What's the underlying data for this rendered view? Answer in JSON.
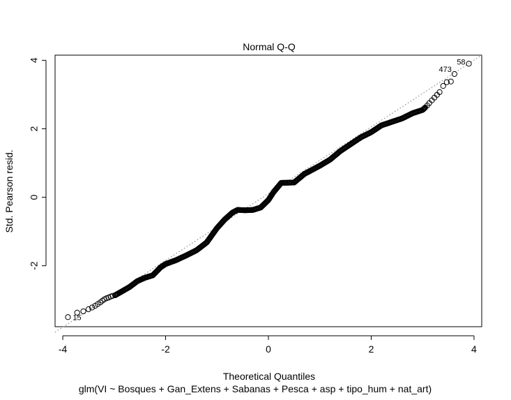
{
  "chart_data": {
    "type": "scatter",
    "title": "Normal Q-Q",
    "xlabel": "Theoretical Quantiles",
    "ylabel": "Std. Pearson resid.",
    "caption": "glm(VI ~ Bosques + Gan_Extens + Sabanas + Pesca + asp + tipo_hum + nat_art)",
    "xlim": [
      -4.15,
      4.15
    ],
    "ylim": [
      -3.78,
      4.15
    ],
    "x_ticks": [
      -4,
      -2,
      0,
      2,
      4
    ],
    "y_ticks": [
      -2,
      0,
      2,
      4
    ],
    "grid": false,
    "legend": "none",
    "marker": "open-circle",
    "reference_line": {
      "style": "dotted",
      "points": [
        [
          -4.15,
          -3.94
        ],
        [
          4.15,
          4.15
        ]
      ]
    },
    "annotations": [
      {
        "label": "15",
        "x": -3.9,
        "y": -3.5
      },
      {
        "label": "473",
        "x": 3.62,
        "y": 3.6
      },
      {
        "label": "58",
        "x": 3.9,
        "y": 3.9
      }
    ],
    "series": [
      {
        "points": [
          [
            -3.9,
            -3.5
          ],
          [
            -3.72,
            -3.37
          ],
          [
            -3.6,
            -3.33
          ],
          [
            -3.5,
            -3.27
          ],
          [
            -3.43,
            -3.22
          ],
          [
            -3.37,
            -3.17
          ],
          [
            -3.32,
            -3.12
          ],
          [
            -3.27,
            -3.07
          ],
          [
            -3.23,
            -3.02
          ],
          [
            -3.19,
            -2.98
          ],
          [
            -3.15,
            -2.95
          ],
          [
            -3.11,
            -2.93
          ],
          [
            -3.07,
            -2.9
          ],
          [
            -3.03,
            -2.88
          ],
          [
            -2.98,
            -2.86
          ],
          [
            3.05,
            2.62
          ],
          [
            3.09,
            2.68
          ],
          [
            3.13,
            2.75
          ],
          [
            3.18,
            2.83
          ],
          [
            3.23,
            2.91
          ],
          [
            3.28,
            2.99
          ],
          [
            3.33,
            3.07
          ],
          [
            3.4,
            3.25
          ],
          [
            3.47,
            3.36
          ],
          [
            3.55,
            3.38
          ],
          [
            3.62,
            3.6
          ],
          [
            3.9,
            3.9
          ]
        ],
        "trend": [
          [
            -2.98,
            -2.86
          ],
          [
            -2.85,
            -2.75
          ],
          [
            -2.7,
            -2.62
          ],
          [
            -2.55,
            -2.45
          ],
          [
            -2.4,
            -2.35
          ],
          [
            -2.25,
            -2.28
          ],
          [
            -2.1,
            -2.05
          ],
          [
            -2.0,
            -1.95
          ],
          [
            -1.8,
            -1.84
          ],
          [
            -1.6,
            -1.7
          ],
          [
            -1.4,
            -1.55
          ],
          [
            -1.2,
            -1.32
          ],
          [
            -1.0,
            -0.9
          ],
          [
            -0.85,
            -0.65
          ],
          [
            -0.7,
            -0.45
          ],
          [
            -0.6,
            -0.37
          ],
          [
            -0.45,
            -0.38
          ],
          [
            -0.3,
            -0.37
          ],
          [
            -0.15,
            -0.3
          ],
          [
            0.0,
            -0.08
          ],
          [
            0.1,
            0.15
          ],
          [
            0.25,
            0.42
          ],
          [
            0.5,
            0.43
          ],
          [
            0.7,
            0.68
          ],
          [
            0.85,
            0.8
          ],
          [
            1.0,
            0.92
          ],
          [
            1.2,
            1.1
          ],
          [
            1.4,
            1.35
          ],
          [
            1.6,
            1.55
          ],
          [
            1.8,
            1.75
          ],
          [
            2.0,
            1.9
          ],
          [
            2.2,
            2.1
          ],
          [
            2.4,
            2.2
          ],
          [
            2.6,
            2.3
          ],
          [
            2.8,
            2.45
          ],
          [
            3.0,
            2.55
          ],
          [
            3.05,
            2.62
          ]
        ]
      }
    ]
  }
}
